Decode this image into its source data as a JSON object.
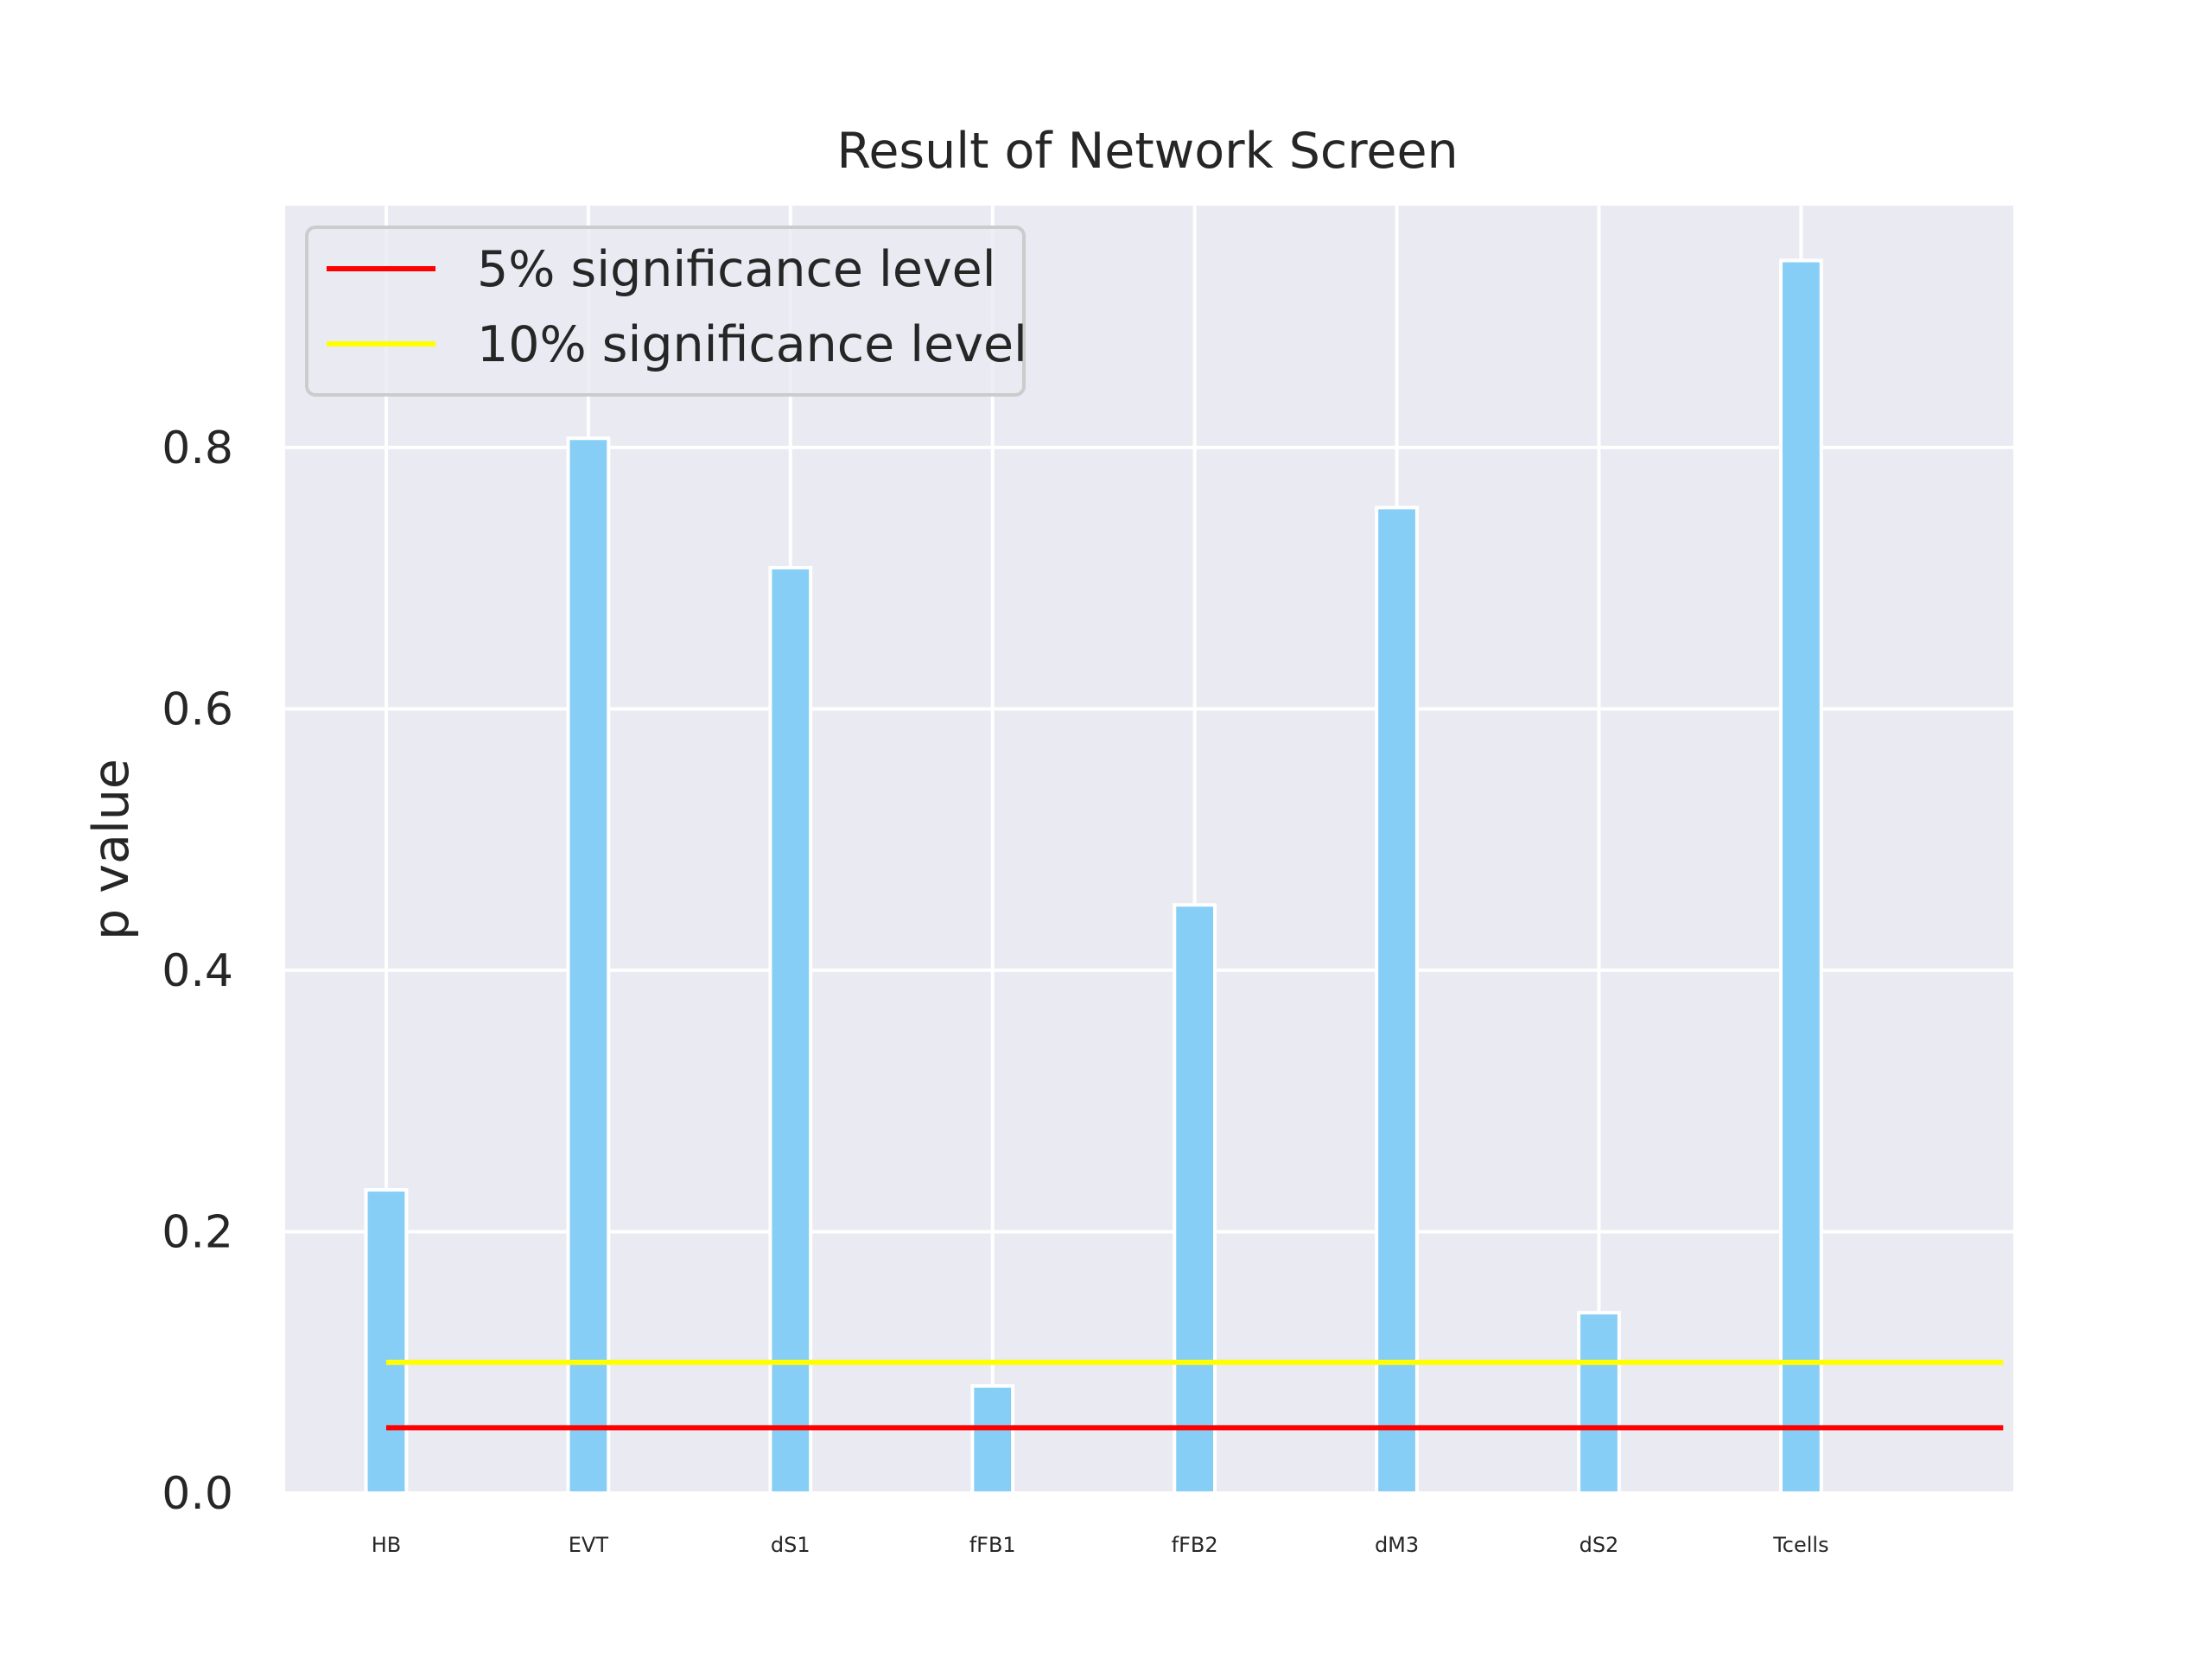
{
  "chart_data": {
    "type": "bar",
    "title": "Result of Network Screen",
    "xlabel": "",
    "ylabel": "p value",
    "categories": [
      "HB",
      "EVT",
      "dS1",
      "fFB1",
      "fFB2",
      "dM3",
      "dS2",
      "Tcells"
    ],
    "values": [
      0.232,
      0.807,
      0.708,
      0.082,
      0.45,
      0.754,
      0.138,
      0.943
    ],
    "ylim": [
      0,
      0.985
    ],
    "xlim": [
      -0.5,
      8.05
    ],
    "yticks": [
      0.0,
      0.2,
      0.4,
      0.6,
      0.8
    ],
    "ytick_labels": [
      "0.0",
      "0.2",
      "0.4",
      "0.6",
      "0.8"
    ],
    "grid": true,
    "bar_color": "#87CEF7",
    "background_color": "#EAEAF2",
    "reference_lines": [
      {
        "name": "5% significance level",
        "y": 0.05,
        "x_range": [
          0,
          8
        ],
        "color": "#FF0000"
      },
      {
        "name": "10% significance level",
        "y": 0.1,
        "x_range": [
          0,
          8
        ],
        "color": "#FFFF00"
      }
    ],
    "legend": {
      "position": "top-left"
    }
  }
}
